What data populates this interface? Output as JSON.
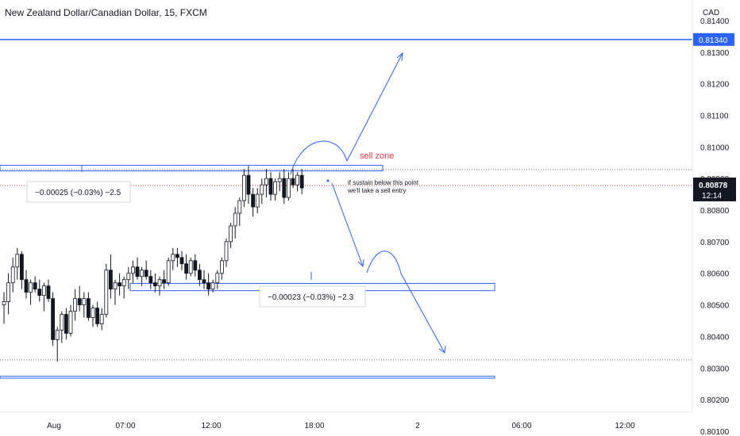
{
  "header": {
    "title": "New Zealand Dollar/Canadian Dollar, 15, FXCM"
  },
  "chart_data": {
    "type": "candlestick",
    "currency_label": "CAD",
    "ylim": [
      0.80085,
      0.81465
    ],
    "y_ticks": [
      "0.81400",
      "0.81300",
      "0.81200",
      "0.81100",
      "0.81000",
      "0.80900",
      "0.80800",
      "0.80700",
      "0.80600",
      "0.80500",
      "0.80400",
      "0.80300",
      "0.80200",
      "0.80100"
    ],
    "x_ticks": [
      "Aug",
      "07:00",
      "12:00",
      "18:00",
      "2",
      "06:00",
      "12:00"
    ],
    "last_price": "0.80878",
    "countdown": "12:14",
    "hline_label": "0.81340",
    "levels": [
      0.8134,
      0.80942,
      0.80924,
      0.80568,
      0.80545,
      0.80274,
      0.80268
    ],
    "dotted_levels": [
      0.80928,
      0.80878,
      0.80326
    ],
    "annotations": {
      "sell_zone": "sell zone",
      "note_line1": "if sustain below this point",
      "note_line2": "we'll take a sell entry",
      "measure_top": "−0.00025 (−0.03%) −2.5",
      "measure_bottom": "−0.00023 (−0.03%) −2.3"
    },
    "candles": [
      [
        0.805,
        0.8054,
        0.8044,
        0.8051
      ],
      [
        0.8051,
        0.806,
        0.8047,
        0.8057
      ],
      [
        0.8057,
        0.8065,
        0.8054,
        0.8062
      ],
      [
        0.8062,
        0.8068,
        0.8058,
        0.8066
      ],
      [
        0.8066,
        0.8067,
        0.8055,
        0.8058
      ],
      [
        0.8058,
        0.8061,
        0.8052,
        0.8054
      ],
      [
        0.8054,
        0.8058,
        0.805,
        0.8057
      ],
      [
        0.8057,
        0.8059,
        0.8054,
        0.8055
      ],
      [
        0.8055,
        0.8058,
        0.8051,
        0.8053
      ],
      [
        0.8053,
        0.8057,
        0.8048,
        0.8056
      ],
      [
        0.8056,
        0.8058,
        0.8051,
        0.8052
      ],
      [
        0.8052,
        0.8054,
        0.8037,
        0.8039
      ],
      [
        0.8039,
        0.8043,
        0.8032,
        0.8042
      ],
      [
        0.8042,
        0.8048,
        0.8038,
        0.8047
      ],
      [
        0.8047,
        0.8049,
        0.8039,
        0.8041
      ],
      [
        0.8041,
        0.805,
        0.804,
        0.8048
      ],
      [
        0.8048,
        0.8055,
        0.8045,
        0.8052
      ],
      [
        0.8052,
        0.8056,
        0.8048,
        0.805
      ],
      [
        0.805,
        0.8054,
        0.8046,
        0.8052
      ],
      [
        0.8052,
        0.8054,
        0.8045,
        0.8046
      ],
      [
        0.8046,
        0.805,
        0.8043,
        0.8049
      ],
      [
        0.8049,
        0.8051,
        0.8043,
        0.8044
      ],
      [
        0.8044,
        0.8049,
        0.8042,
        0.8047
      ],
      [
        0.8047,
        0.8063,
        0.8046,
        0.8061
      ],
      [
        0.8061,
        0.8066,
        0.8052,
        0.8055
      ],
      [
        0.8055,
        0.8058,
        0.805,
        0.8057
      ],
      [
        0.8057,
        0.806,
        0.8053,
        0.8056
      ],
      [
        0.8056,
        0.8059,
        0.8052,
        0.8058
      ],
      [
        0.8058,
        0.8062,
        0.8055,
        0.806
      ],
      [
        0.806,
        0.8064,
        0.8057,
        0.8062
      ],
      [
        0.8062,
        0.8065,
        0.8058,
        0.8059
      ],
      [
        0.8059,
        0.8062,
        0.8056,
        0.8061
      ],
      [
        0.8061,
        0.8064,
        0.8058,
        0.8059
      ],
      [
        0.8059,
        0.8061,
        0.8055,
        0.8057
      ],
      [
        0.8057,
        0.806,
        0.8054,
        0.8056
      ],
      [
        0.8056,
        0.8059,
        0.8053,
        0.8058
      ],
      [
        0.8058,
        0.8061,
        0.8055,
        0.8057
      ],
      [
        0.8057,
        0.8065,
        0.8056,
        0.8064
      ],
      [
        0.8064,
        0.8068,
        0.8061,
        0.8066
      ],
      [
        0.8066,
        0.8068,
        0.8062,
        0.8065
      ],
      [
        0.8065,
        0.8067,
        0.8061,
        0.8063
      ],
      [
        0.8063,
        0.8066,
        0.8058,
        0.806
      ],
      [
        0.806,
        0.8065,
        0.8059,
        0.8064
      ],
      [
        0.8064,
        0.8066,
        0.8059,
        0.8061
      ],
      [
        0.8061,
        0.8063,
        0.8056,
        0.8058
      ],
      [
        0.8058,
        0.8061,
        0.8055,
        0.8057
      ],
      [
        0.8057,
        0.806,
        0.8053,
        0.8055
      ],
      [
        0.8055,
        0.8058,
        0.8054,
        0.8057
      ],
      [
        0.8057,
        0.8061,
        0.8055,
        0.806
      ],
      [
        0.806,
        0.8065,
        0.8058,
        0.8064
      ],
      [
        0.8064,
        0.8071,
        0.8062,
        0.807
      ],
      [
        0.807,
        0.8076,
        0.8068,
        0.8075
      ],
      [
        0.8075,
        0.8081,
        0.8071,
        0.8079
      ],
      [
        0.8079,
        0.8084,
        0.8075,
        0.8083
      ],
      [
        0.8083,
        0.8093,
        0.8081,
        0.8091
      ],
      [
        0.8091,
        0.8094,
        0.8082,
        0.8085
      ],
      [
        0.8085,
        0.8087,
        0.8078,
        0.8081
      ],
      [
        0.8081,
        0.8087,
        0.8079,
        0.8085
      ],
      [
        0.8085,
        0.809,
        0.8082,
        0.8088
      ],
      [
        0.8088,
        0.8093,
        0.8084,
        0.809
      ],
      [
        0.809,
        0.8092,
        0.8083,
        0.8085
      ],
      [
        0.8085,
        0.809,
        0.8083,
        0.8089
      ],
      [
        0.8089,
        0.8092,
        0.8086,
        0.809
      ],
      [
        0.809,
        0.8093,
        0.8082,
        0.8084
      ],
      [
        0.8084,
        0.8092,
        0.8083,
        0.809
      ],
      [
        0.809,
        0.8093,
        0.8087,
        0.8088
      ],
      [
        0.8088,
        0.8092,
        0.8086,
        0.8091
      ],
      [
        0.8091,
        0.8093,
        0.8085,
        0.8087
      ]
    ]
  }
}
